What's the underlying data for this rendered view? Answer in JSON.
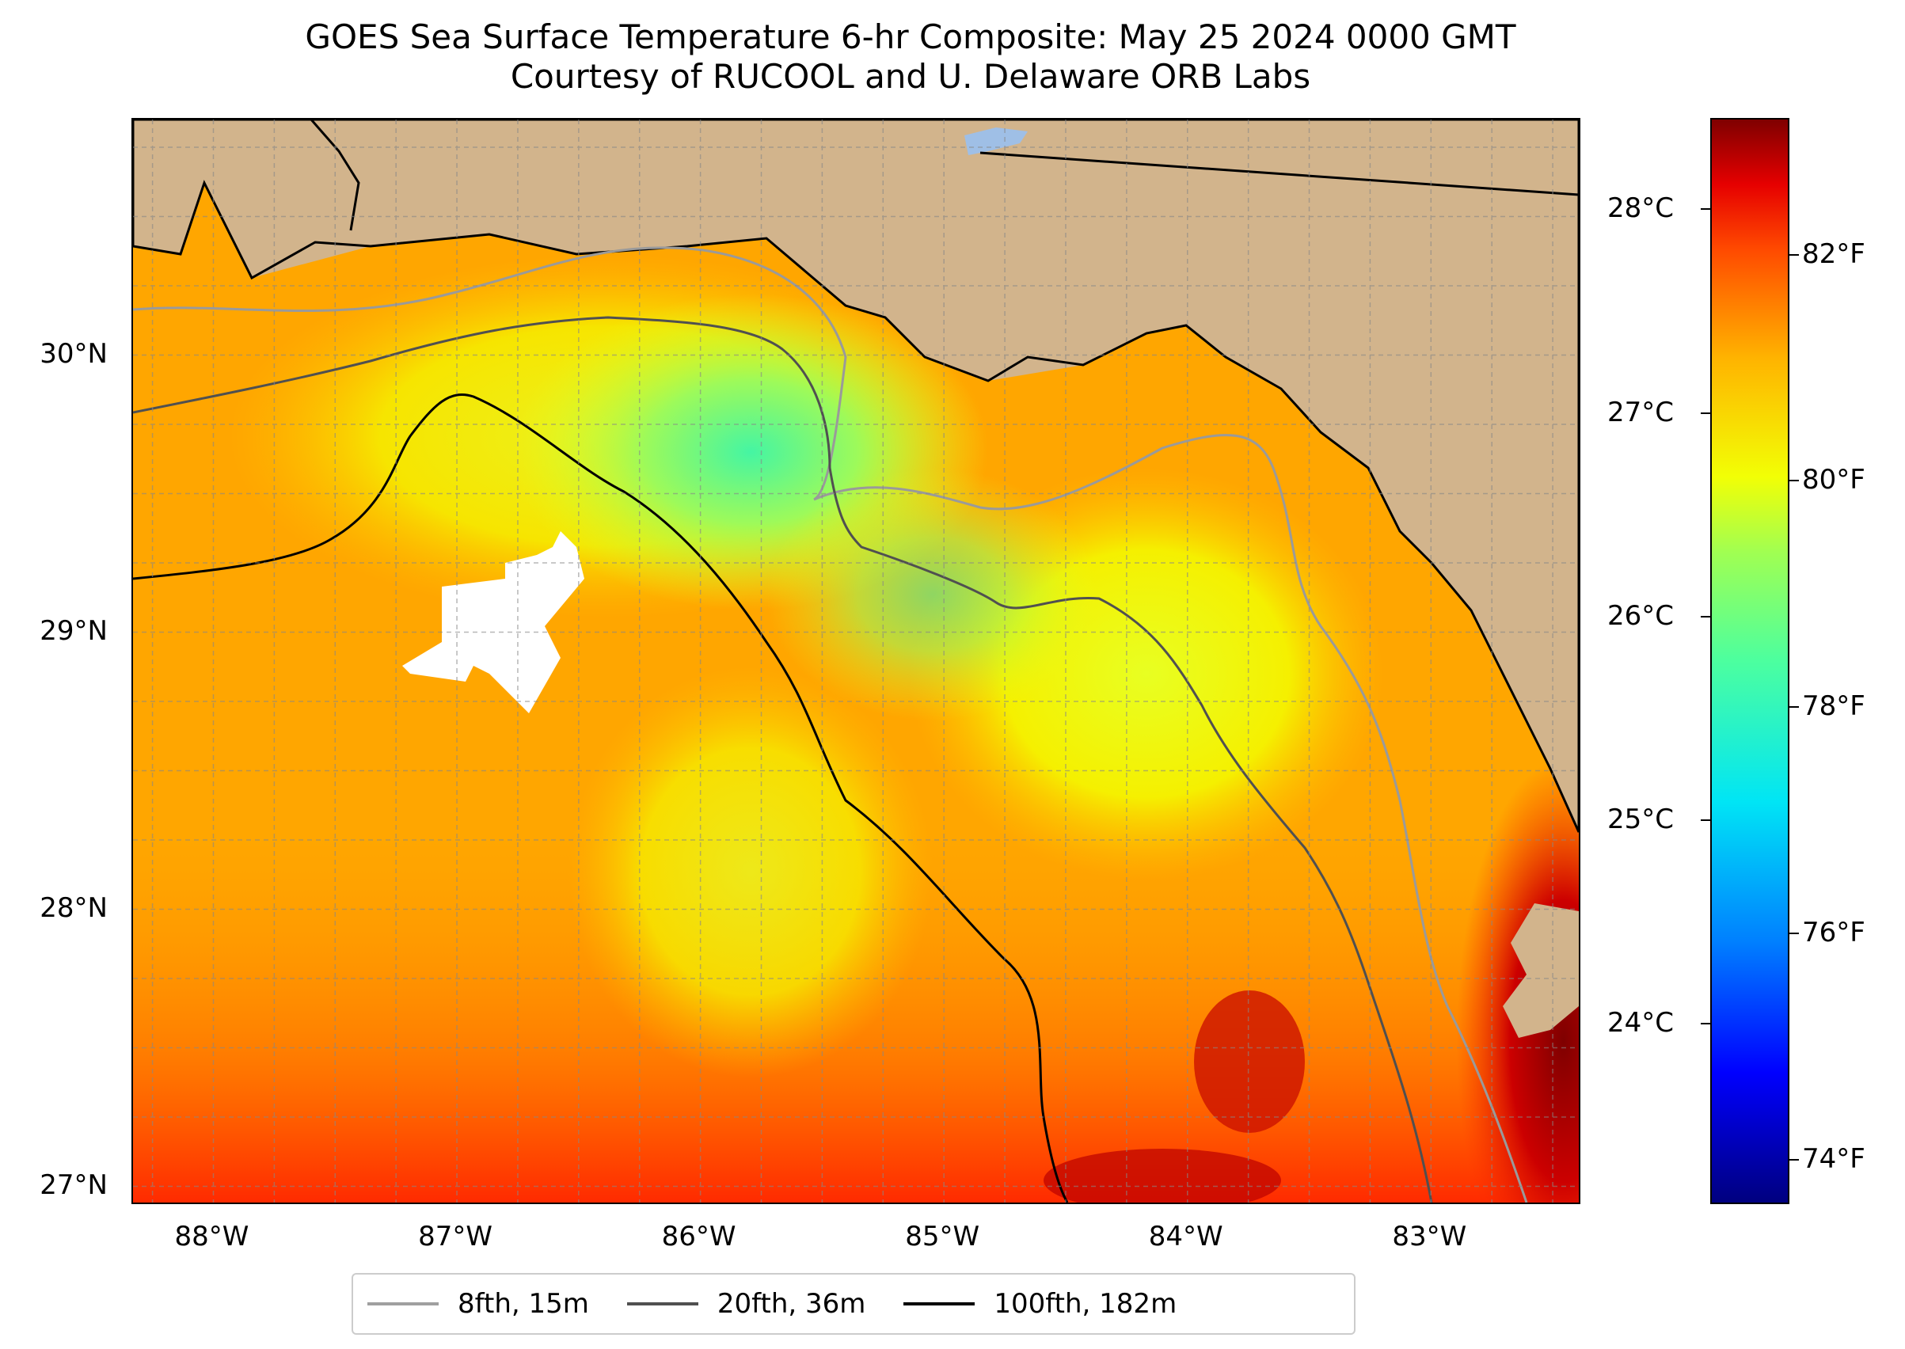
{
  "title_line1": "GOES Sea Surface Temperature 6-hr Composite: May 25 2024 0000 GMT",
  "title_line2": "Courtesy of RUCOOL and U. Delaware ORB Labs",
  "map": {
    "extent": {
      "lon_min": -88.33,
      "lon_max": -82.38,
      "lat_min": 26.93,
      "lat_max": 30.85
    },
    "land_color": "#d2b48c",
    "water_color": "#9fbfe6",
    "lat_ticks": [
      {
        "lat": 30,
        "label": "30°N"
      },
      {
        "lat": 29,
        "label": "29°N"
      },
      {
        "lat": 28,
        "label": "28°N"
      },
      {
        "lat": 27,
        "label": "27°N"
      }
    ],
    "lon_ticks": [
      {
        "lon": -88,
        "label": "88°W"
      },
      {
        "lon": -87,
        "label": "87°W"
      },
      {
        "lon": -86,
        "label": "86°W"
      },
      {
        "lon": -85,
        "label": "85°W"
      },
      {
        "lon": -84,
        "label": "84°W"
      },
      {
        "lon": -83,
        "label": "83°W"
      }
    ],
    "gridlines": "dashed grey, every 0.25 degrees"
  },
  "colorbar": {
    "colormap": "jet",
    "f_labels": [
      {
        "value": 82,
        "label": "82°F"
      },
      {
        "value": 80,
        "label": "80°F"
      },
      {
        "value": 78,
        "label": "78°F"
      },
      {
        "value": 76,
        "label": "76°F"
      },
      {
        "value": 74,
        "label": "74°F"
      }
    ],
    "c_labels": [
      {
        "value": 28,
        "label": "28°C"
      },
      {
        "value": 27,
        "label": "27°C"
      },
      {
        "value": 26,
        "label": "26°C"
      },
      {
        "value": 25,
        "label": "25°C"
      },
      {
        "value": 24,
        "label": "24°C"
      }
    ],
    "range_f": [
      73.6,
      83.2
    ]
  },
  "legend": [
    {
      "label": "8fth, 15m",
      "color": "#a0a0a0"
    },
    {
      "label": "20fth, 36m",
      "color": "#505050"
    },
    {
      "label": "100fth, 182m",
      "color": "#000000"
    }
  ]
}
